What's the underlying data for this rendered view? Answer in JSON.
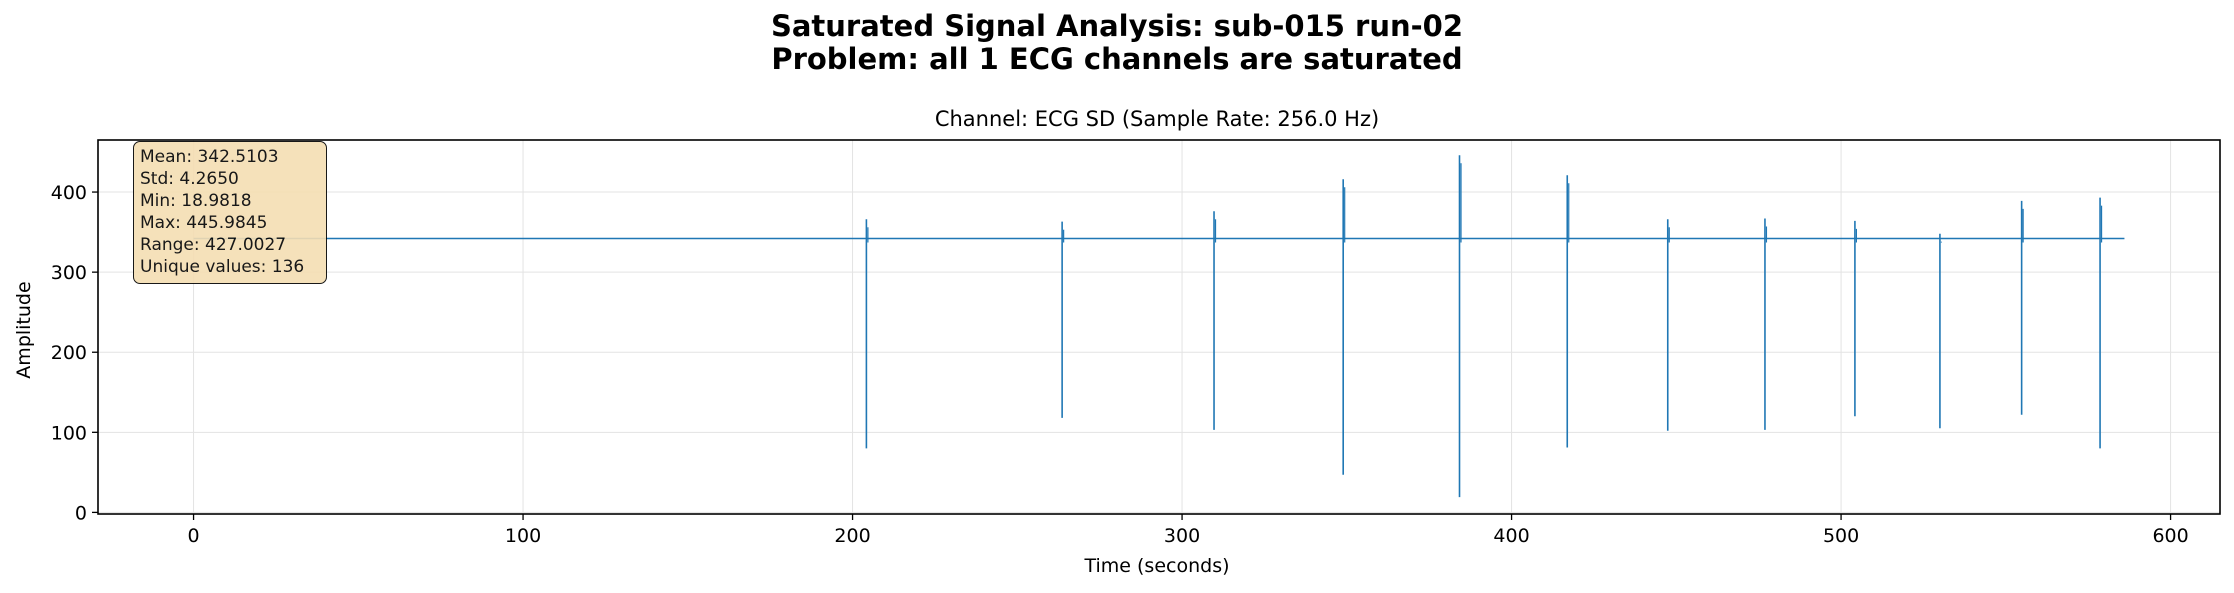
{
  "title": {
    "line1": "Saturated Signal Analysis: sub-015 run-02",
    "line2": "Problem: all 1 ECG channels are saturated"
  },
  "stats_box": [
    "Mean: 342.5103",
    "Std: 4.2650",
    "Min: 18.9818",
    "Max: 445.9845",
    "Range: 427.0027",
    "Unique values: 136"
  ],
  "chart_data": {
    "type": "line",
    "title": "Channel: ECG SD (Sample Rate: 256.0 Hz)",
    "xlabel": "Time (seconds)",
    "ylabel": "Amplitude",
    "xlim": [
      -29,
      615
    ],
    "ylim": [
      -2,
      465
    ],
    "x_ticks": [
      0,
      100,
      200,
      300,
      400,
      500,
      600
    ],
    "y_ticks": [
      0,
      100,
      200,
      300,
      400
    ],
    "grid": true,
    "line_color": "#1f77b4",
    "series": [
      {
        "baseline": {
          "x_start": 0,
          "x_end": 586,
          "y": 342
        },
        "spikes": [
          {
            "x": 204.2,
            "max": 366,
            "min": 80
          },
          {
            "x": 263.6,
            "max": 363,
            "min": 118
          },
          {
            "x": 309.7,
            "max": 376,
            "min": 103
          },
          {
            "x": 348.9,
            "max": 416,
            "min": 47
          },
          {
            "x": 384.2,
            "max": 446,
            "min": 19
          },
          {
            "x": 416.9,
            "max": 421,
            "min": 81
          },
          {
            "x": 447.4,
            "max": 366,
            "min": 102
          },
          {
            "x": 476.9,
            "max": 367,
            "min": 103
          },
          {
            "x": 504.2,
            "max": 364,
            "min": 120
          },
          {
            "x": 530.0,
            "max": 348,
            "min": 105
          },
          {
            "x": 554.8,
            "max": 389,
            "min": 122
          },
          {
            "x": 578.6,
            "max": 393,
            "min": 80
          }
        ]
      }
    ]
  }
}
